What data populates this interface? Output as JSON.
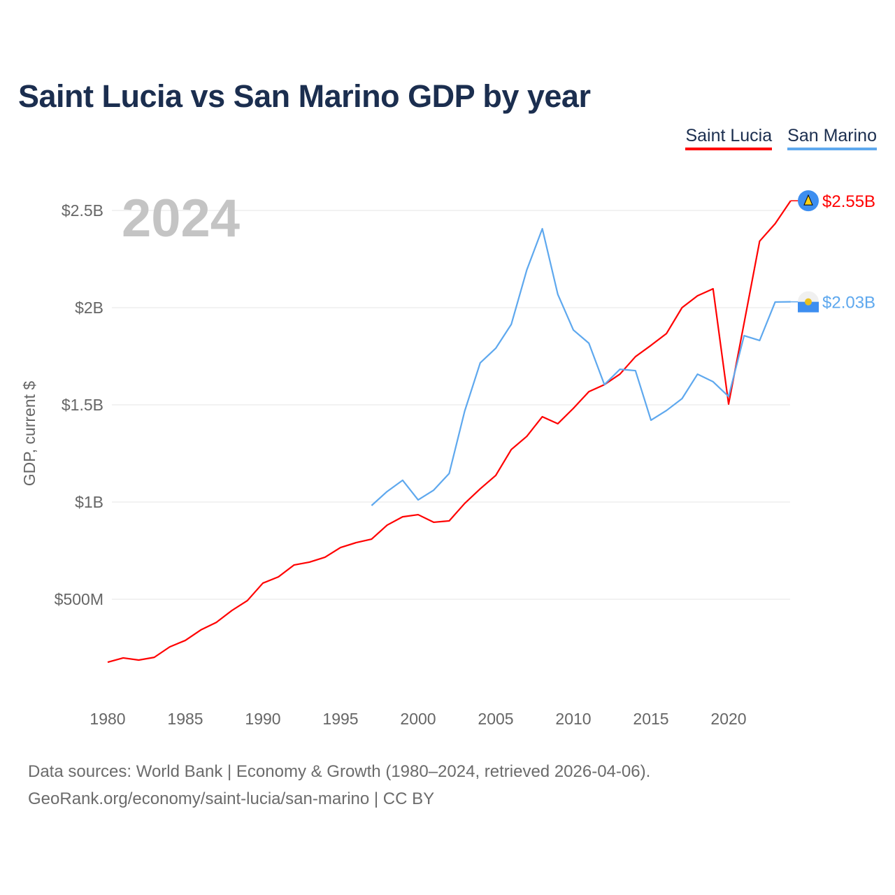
{
  "title": "Saint Lucia vs San Marino GDP by year",
  "legend": [
    {
      "label": "Saint Lucia",
      "color": "#ff0000"
    },
    {
      "label": "San Marino",
      "color": "#5ea8ee"
    }
  ],
  "year_label": "2024",
  "footer": {
    "line1": "Data sources: World Bank | Economy & Growth (1980–2024, retrieved 2026-04-06).",
    "line2": "GeoRank.org/economy/saint-lucia/san-marino | CC BY"
  },
  "chart_data": {
    "type": "line",
    "title": "Saint Lucia vs San Marino GDP by year",
    "xlabel": "",
    "ylabel": "GDP, current $",
    "xlim": [
      1980,
      2024
    ],
    "ylim": [
      0,
      2.6
    ],
    "x_ticks": [
      1980,
      1985,
      1990,
      1995,
      2000,
      2005,
      2010,
      2015,
      2020
    ],
    "y_ticks": [
      {
        "v": 0.5,
        "label": "$500M"
      },
      {
        "v": 1,
        "label": "$1B"
      },
      {
        "v": 1.5,
        "label": "$1.5B"
      },
      {
        "v": 2,
        "label": "$2B"
      },
      {
        "v": 2.5,
        "label": "$2.5B"
      }
    ],
    "grid": true,
    "legend_placement": "top-right",
    "units": "billions USD",
    "series": [
      {
        "name": "Saint Lucia",
        "color": "#ff0000",
        "end_label": "$2.55B",
        "start_year": 1980,
        "values": [
          0.176,
          0.198,
          0.187,
          0.201,
          0.255,
          0.288,
          0.342,
          0.381,
          0.442,
          0.493,
          0.583,
          0.615,
          0.676,
          0.691,
          0.716,
          0.766,
          0.791,
          0.809,
          0.881,
          0.924,
          0.935,
          0.896,
          0.903,
          0.993,
          1.068,
          1.137,
          1.27,
          1.338,
          1.439,
          1.403,
          1.482,
          1.568,
          1.604,
          1.658,
          1.748,
          1.806,
          1.867,
          2.0,
          2.061,
          2.097,
          1.504,
          1.921,
          2.342,
          2.432,
          2.55
        ]
      },
      {
        "name": "San Marino",
        "color": "#5ea8ee",
        "end_label": "$2.03B",
        "start_year": 1997,
        "values": [
          0.982,
          1.054,
          1.112,
          1.011,
          1.061,
          1.147,
          1.468,
          1.716,
          1.791,
          1.914,
          2.194,
          2.406,
          2.068,
          1.885,
          1.817,
          1.604,
          1.683,
          1.676,
          1.421,
          1.471,
          1.532,
          1.658,
          1.619,
          1.543,
          1.856,
          1.831,
          2.029,
          2.03
        ]
      }
    ]
  }
}
